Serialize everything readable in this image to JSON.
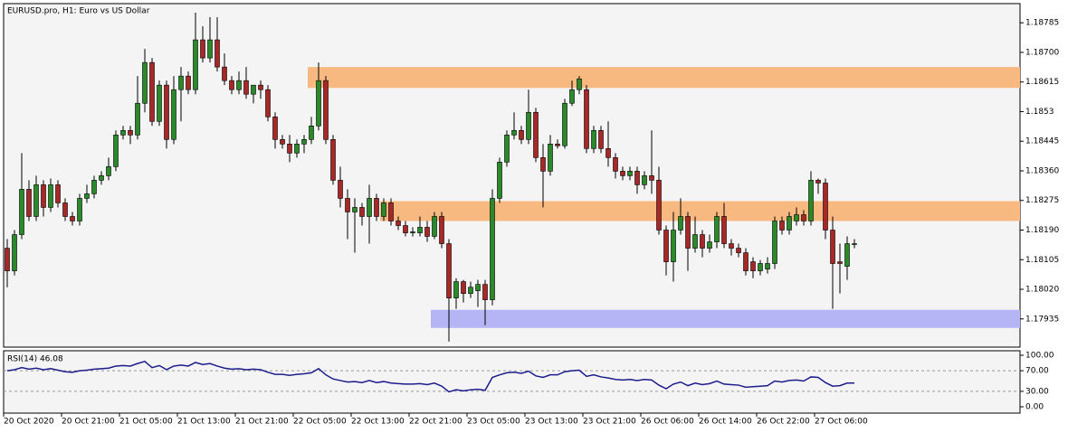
{
  "chart_data": [
    {
      "type": "candlestick",
      "title": "EURUSD.pro, H1:  Euro vs US Dollar",
      "categories": [
        "20 Oct 2020",
        null,
        null,
        null,
        null,
        null,
        null,
        null,
        "20 Oct 21:00",
        null,
        null,
        null,
        null,
        null,
        null,
        null,
        "21 Oct 05:00",
        null,
        null,
        null,
        null,
        null,
        null,
        null,
        "21 Oct 13:00",
        null,
        null,
        null,
        null,
        null,
        null,
        null,
        "21 Oct 21:00",
        null,
        null,
        null,
        null,
        null,
        null,
        null,
        "22 Oct 05:00",
        null,
        null,
        null,
        null,
        null,
        null,
        null,
        "22 Oct 13:00",
        null,
        null,
        null,
        null,
        null,
        null,
        null,
        "22 Oct 21:00",
        null,
        null,
        null,
        null,
        null,
        null,
        null,
        "23 Oct 05:00",
        null,
        null,
        null,
        null,
        null,
        null,
        null,
        "23 Oct 13:00",
        null,
        null,
        null,
        null,
        null,
        null,
        null,
        "23 Oct 21:00",
        null,
        null,
        null,
        null,
        null,
        null,
        null,
        "26 Oct 06:00",
        null,
        null,
        null,
        null,
        null,
        null,
        null,
        "26 Oct 14:00",
        null,
        null,
        null,
        null,
        null,
        null,
        null,
        "26 Oct 22:00",
        null,
        null,
        null,
        null,
        null,
        null,
        null,
        "27 Oct 06:00",
        null,
        null,
        null,
        null,
        null
      ],
      "open": [
        1.18138,
        1.18073,
        1.18177,
        1.18307,
        1.18229,
        1.1832,
        1.18255,
        1.1832,
        1.18268,
        1.18229,
        1.18216,
        1.18281,
        1.18294,
        1.18333,
        1.18346,
        1.18372,
        1.18463,
        1.18476,
        1.18463,
        1.18554,
        1.18671,
        1.18502,
        1.18606,
        1.1845,
        1.18593,
        1.18632,
        1.18593,
        1.18736,
        1.18684,
        1.18736,
        1.18658,
        1.18619,
        1.18593,
        1.18619,
        1.1858,
        1.18606,
        1.18593,
        1.18515,
        1.1845,
        1.18437,
        1.18411,
        1.18437,
        1.1845,
        1.18489,
        1.18619,
        1.1845,
        1.18333,
        1.18281,
        1.18242,
        1.18255,
        1.18229,
        1.18281,
        1.18229,
        1.18268,
        1.18216,
        1.18203,
        1.18182,
        1.18182,
        1.18198,
        1.18172,
        1.18229,
        1.18151,
        1.17995,
        1.18042,
        1.18008,
        1.18016,
        1.18034,
        1.1799,
        1.18281,
        1.18385,
        1.18463,
        1.18476,
        1.1845,
        1.18528,
        1.18398,
        1.18359,
        1.18437,
        1.18432,
        1.18554,
        1.18593,
        1.18593,
        1.18424,
        1.18476,
        1.18424,
        1.18398,
        1.18359,
        1.18346,
        1.18359,
        1.1832,
        1.18346,
        1.18333,
        1.1819,
        1.18099,
        1.1819,
        1.18229,
        1.18138,
        1.18177,
        1.18138,
        1.18156,
        1.18229,
        1.18151,
        1.18138,
        1.18125,
        1.18099,
        1.18073,
        1.18078,
        1.18094,
        1.18216,
        1.1819,
        1.18216,
        1.18234,
        1.18216,
        1.18333,
        1.18325,
        1.1819,
        1.18099,
        1.18086,
        1.18151
      ],
      "high": [
        1.18164,
        1.1819,
        1.18411,
        1.18333,
        1.18346,
        1.18333,
        1.18338,
        1.18333,
        1.18281,
        1.18242,
        1.18294,
        1.1832,
        1.18346,
        1.18359,
        1.18398,
        1.18476,
        1.18489,
        1.18489,
        1.18632,
        1.1871,
        1.18684,
        1.18619,
        1.18619,
        1.18632,
        1.18658,
        1.18645,
        1.18814,
        1.18775,
        1.18801,
        1.18801,
        1.18697,
        1.18632,
        1.18645,
        1.18658,
        1.18606,
        1.18619,
        1.18606,
        1.18528,
        1.18463,
        1.18463,
        1.1845,
        1.18463,
        1.18515,
        1.18671,
        1.18632,
        1.18463,
        1.18372,
        1.18307,
        1.18281,
        1.18268,
        1.1832,
        1.18294,
        1.18281,
        1.18281,
        1.18229,
        1.18216,
        1.18198,
        1.18229,
        1.18216,
        1.18242,
        1.18242,
        1.18164,
        1.18052,
        1.18047,
        1.18042,
        1.18047,
        1.18047,
        1.18307,
        1.18398,
        1.18476,
        1.18528,
        1.18489,
        1.18593,
        1.18541,
        1.18437,
        1.18463,
        1.1845,
        1.18567,
        1.18619,
        1.18632,
        1.18606,
        1.18489,
        1.18489,
        1.18502,
        1.18411,
        1.18372,
        1.18372,
        1.18372,
        1.18359,
        1.18476,
        1.18372,
        1.18203,
        1.18242,
        1.18281,
        1.18242,
        1.18229,
        1.1819,
        1.18177,
        1.18242,
        1.18268,
        1.18164,
        1.18151,
        1.18138,
        1.18112,
        1.18104,
        1.18112,
        1.18229,
        1.18229,
        1.18242,
        1.18255,
        1.18247,
        1.18359,
        1.18338,
        1.18338,
        1.18229,
        1.18151,
        1.18172,
        1.18164
      ],
      "low": [
        1.18026,
        1.1806,
        1.18164,
        1.18216,
        1.18216,
        1.18229,
        1.18242,
        1.18255,
        1.18216,
        1.18203,
        1.18203,
        1.18268,
        1.18281,
        1.1832,
        1.18333,
        1.18359,
        1.1845,
        1.18437,
        1.1845,
        1.18528,
        1.18489,
        1.18489,
        1.18424,
        1.18437,
        1.18502,
        1.1858,
        1.1858,
        1.18671,
        1.18671,
        1.18645,
        1.18606,
        1.1858,
        1.1858,
        1.18567,
        1.18554,
        1.18567,
        1.18502,
        1.18424,
        1.18424,
        1.18385,
        1.18398,
        1.18411,
        1.18437,
        1.18476,
        1.18437,
        1.1832,
        1.18255,
        1.18164,
        1.18125,
        1.18203,
        1.18151,
        1.18216,
        1.18216,
        1.18203,
        1.1819,
        1.18172,
        1.18172,
        1.18172,
        1.18156,
        1.18164,
        1.18138,
        1.1787,
        1.17964,
        1.17982,
        1.17995,
        1.17969,
        1.17917,
        1.17974,
        1.18268,
        1.18372,
        1.1845,
        1.18437,
        1.18437,
        1.18385,
        1.18255,
        1.18346,
        1.18424,
        1.18424,
        1.18546,
        1.1858,
        1.18411,
        1.18411,
        1.18411,
        1.18372,
        1.18338,
        1.18333,
        1.18333,
        1.18294,
        1.18307,
        1.18294,
        1.18177,
        1.1806,
        1.18042,
        1.18177,
        1.18073,
        1.18125,
        1.18112,
        1.18125,
        1.18138,
        1.18138,
        1.18117,
        1.18112,
        1.1806,
        1.18052,
        1.1806,
        1.18065,
        1.18078,
        1.18177,
        1.18177,
        1.18203,
        1.18203,
        1.18203,
        1.18294,
        1.18164,
        1.17964,
        1.18008,
        1.18047,
        1.18138
      ],
      "close": [
        1.18073,
        1.18177,
        1.18307,
        1.18229,
        1.1832,
        1.18255,
        1.1832,
        1.18268,
        1.18229,
        1.18216,
        1.18281,
        1.18294,
        1.18333,
        1.18346,
        1.18372,
        1.18463,
        1.18476,
        1.18463,
        1.18554,
        1.18671,
        1.18502,
        1.18606,
        1.1845,
        1.18593,
        1.18632,
        1.18593,
        1.18736,
        1.18684,
        1.18736,
        1.18658,
        1.18619,
        1.18593,
        1.18619,
        1.1858,
        1.18606,
        1.18593,
        1.18515,
        1.1845,
        1.18437,
        1.18411,
        1.18437,
        1.1845,
        1.18489,
        1.18619,
        1.1845,
        1.18333,
        1.18281,
        1.18242,
        1.18255,
        1.18229,
        1.18281,
        1.18229,
        1.18268,
        1.18216,
        1.18203,
        1.18182,
        1.18185,
        1.18198,
        1.18172,
        1.18229,
        1.18151,
        1.17995,
        1.18042,
        1.18008,
        1.18026,
        1.18034,
        1.1799,
        1.18281,
        1.18385,
        1.18463,
        1.18476,
        1.1845,
        1.18528,
        1.18398,
        1.18359,
        1.18437,
        1.18432,
        1.18554,
        1.18593,
        1.18624,
        1.18424,
        1.18476,
        1.18424,
        1.18398,
        1.18359,
        1.18346,
        1.18359,
        1.1832,
        1.18346,
        1.18333,
        1.1819,
        1.18099,
        1.1819,
        1.18229,
        1.18138,
        1.18177,
        1.18138,
        1.18156,
        1.18229,
        1.18151,
        1.18138,
        1.18125,
        1.18073,
        1.18073,
        1.18094,
        1.18094,
        1.18216,
        1.1819,
        1.18229,
        1.18234,
        1.18216,
        1.18333,
        1.18325,
        1.1819,
        1.18094,
        1.18094,
        1.18151,
        1.18151
      ],
      "up_color": "#2a8a2a",
      "down_color": "#a82828",
      "zones": [
        {
          "from": 1.18598,
          "to": 1.18658,
          "start": 42,
          "color": "#f7b97f"
        },
        {
          "from": 1.18216,
          "to": 1.18273,
          "start": 52,
          "color": "#f7b97f"
        },
        {
          "from": 1.17909,
          "to": 1.17961,
          "start": 59,
          "color": "#b5b5f5"
        }
      ],
      "ylim": [
        1.17854,
        1.1884
      ],
      "yticks": [
        1.18785,
        {
          "value": 1.187,
          "label": "1.18700"
        },
        1.18615,
        1.1853,
        1.18445,
        {
          "value": 1.1836,
          "label": "1.18360"
        },
        1.18275,
        {
          "value": 1.1819,
          "label": "1.18190"
        },
        1.18105,
        {
          "value": 1.1802,
          "label": "1.18020"
        },
        1.17935
      ]
    },
    {
      "type": "line",
      "title": "RSI(14) 46.08",
      "values": [
        70,
        72,
        76,
        73,
        75,
        72,
        74,
        71,
        68,
        67,
        70,
        71,
        73,
        74,
        75,
        79,
        80,
        79,
        84,
        88,
        76,
        80,
        72,
        79,
        81,
        79,
        86,
        82,
        84,
        79,
        75,
        73,
        74,
        72,
        73,
        72,
        67,
        63,
        63,
        61,
        63,
        64,
        66,
        74,
        62,
        54,
        51,
        48,
        49,
        47,
        51,
        47,
        49,
        46,
        45,
        44,
        44,
        45,
        43,
        46,
        40,
        29,
        33,
        31,
        33,
        34,
        32,
        57,
        62,
        66,
        67,
        65,
        69,
        60,
        57,
        62,
        62,
        68,
        70,
        71,
        59,
        62,
        58,
        56,
        53,
        52,
        53,
        51,
        53,
        52,
        42,
        35,
        44,
        48,
        41,
        46,
        43,
        45,
        50,
        44,
        43,
        42,
        38,
        39,
        40,
        41,
        50,
        48,
        51,
        52,
        50,
        58,
        57,
        47,
        40,
        41,
        46,
        46.08
      ],
      "color": "#1c1c8c",
      "ylim": [
        0,
        100
      ],
      "yticks": [
        {
          "value": 100,
          "label": "100.00"
        },
        {
          "value": 70,
          "label": "70.00"
        },
        {
          "value": 30,
          "label": "30.00"
        },
        {
          "value": 0,
          "label": "0.00"
        }
      ]
    }
  ]
}
